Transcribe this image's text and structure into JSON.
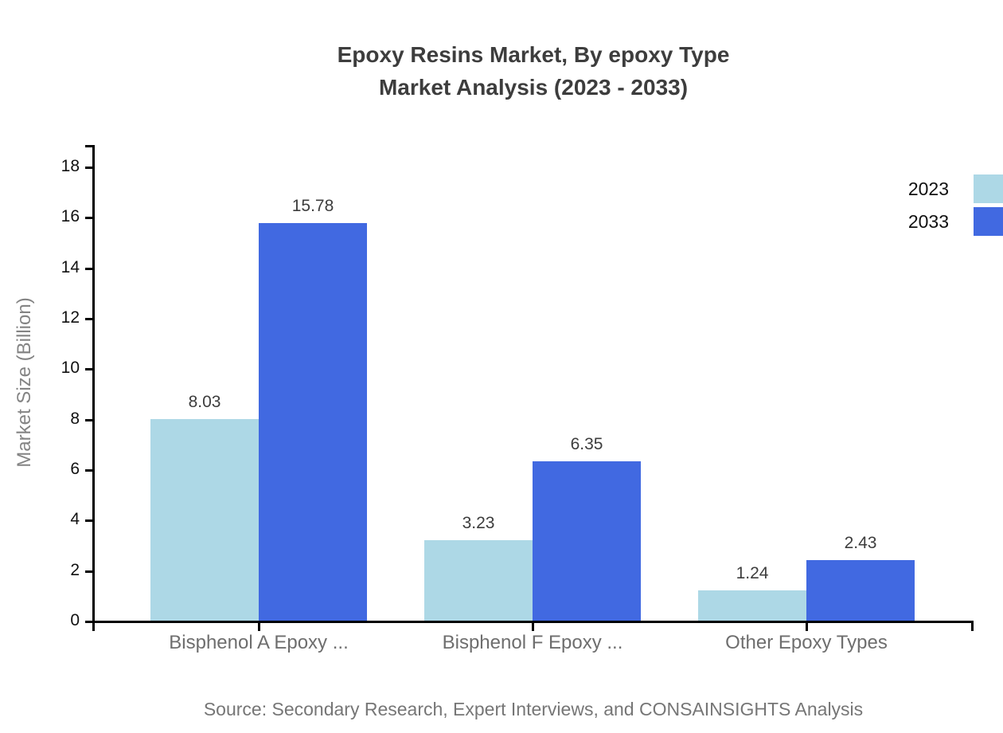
{
  "chart": {
    "title_line1": "Epoxy Resins Market, By epoxy Type",
    "title_line2": "Market Analysis (2023 - 2033)",
    "source": "Source: Secondary Research, Expert Interviews, and CONSAINSIGHTS Analysis"
  },
  "chart_data": {
    "type": "bar",
    "title": "Epoxy Resins Market, By epoxy Type — Market Analysis (2023 - 2033)",
    "categories": [
      "Bisphenol A Epoxy ...",
      "Bisphenol F Epoxy ...",
      "Other Epoxy Types"
    ],
    "series": [
      {
        "name": "2023",
        "color": "#ADD8E6",
        "values": [
          8.03,
          3.23,
          1.24
        ]
      },
      {
        "name": "2033",
        "color": "#4169E1",
        "values": [
          15.78,
          6.35,
          2.43
        ]
      }
    ],
    "xlabel": "",
    "ylabel": "Market Size (Billion)",
    "ylim": [
      0,
      18
    ],
    "yticks": [
      0,
      2,
      4,
      6,
      8,
      10,
      12,
      14,
      16,
      18
    ],
    "grid": false,
    "legend_position": "top-right",
    "value_label_decimals": 2,
    "axis_color": "#000000",
    "tick_label_color": "#111111",
    "category_label_color": "#6e6e6e",
    "title_color": "#3d3d3d"
  }
}
